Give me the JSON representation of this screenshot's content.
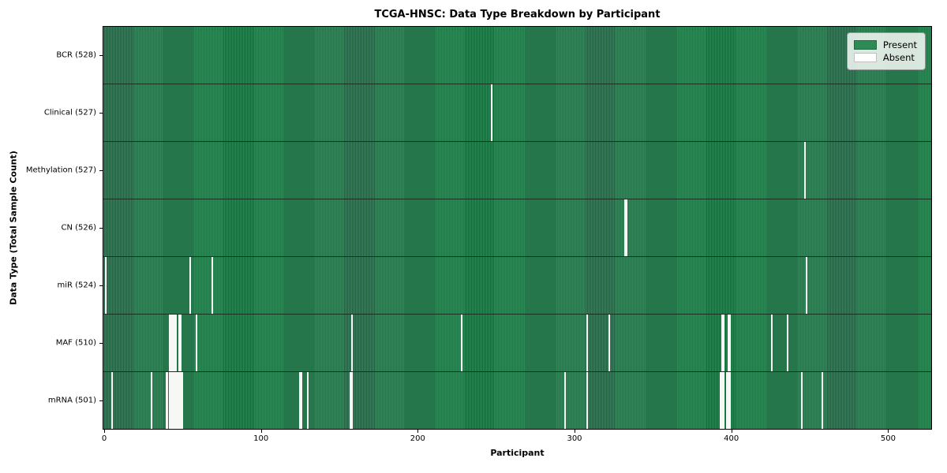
{
  "figure": {
    "title": "TCGA-HNSC: Data Type Breakdown by Participant"
  },
  "chart_data": {
    "type": "heatmap",
    "title": "TCGA-HNSC: Data Type Breakdown by Participant",
    "xlabel": "Participant",
    "ylabel": "Data Type (Total Sample Count)",
    "n_participants": 528,
    "x_ticks": [
      0,
      100,
      200,
      300,
      400,
      500
    ],
    "grid": false,
    "legend_position": "upper right",
    "colors": {
      "present": "#2e8b57",
      "present_edge": "#1f6040",
      "absent": "#f7f7f5",
      "row_separator": "#17331f"
    },
    "legend": [
      {
        "label": "Present",
        "color": "#2e8b57"
      },
      {
        "label": "Absent",
        "color": "#ffffff"
      }
    ],
    "rows": [
      {
        "name": "BCR",
        "total": 528,
        "label": "BCR (528)",
        "absent_participants": []
      },
      {
        "name": "Clinical",
        "total": 527,
        "label": "Clinical (527)",
        "absent_participants": [
          247
        ]
      },
      {
        "name": "Methylation",
        "total": 527,
        "label": "Methylation (527)",
        "absent_participants": [
          447
        ]
      },
      {
        "name": "CN",
        "total": 526,
        "label": "CN (526)",
        "absent_participants": [
          332,
          333
        ]
      },
      {
        "name": "miR",
        "total": 524,
        "label": "miR (524)",
        "absent_participants": [
          1,
          55,
          69,
          448
        ]
      },
      {
        "name": "MAF",
        "total": 510,
        "label": "MAF (510)",
        "absent_participants": [
          42,
          43,
          44,
          45,
          46,
          48,
          49,
          59,
          158,
          228,
          308,
          322,
          394,
          395,
          398,
          399,
          426,
          436
        ]
      },
      {
        "name": "mRNA",
        "total": 501,
        "label": "mRNA (501)",
        "absent_participants": [
          5,
          30,
          40,
          42,
          43,
          44,
          45,
          46,
          47,
          48,
          49,
          50,
          125,
          126,
          130,
          157,
          158,
          294,
          308,
          393,
          394,
          395,
          397,
          398,
          399,
          445,
          458
        ]
      }
    ]
  }
}
